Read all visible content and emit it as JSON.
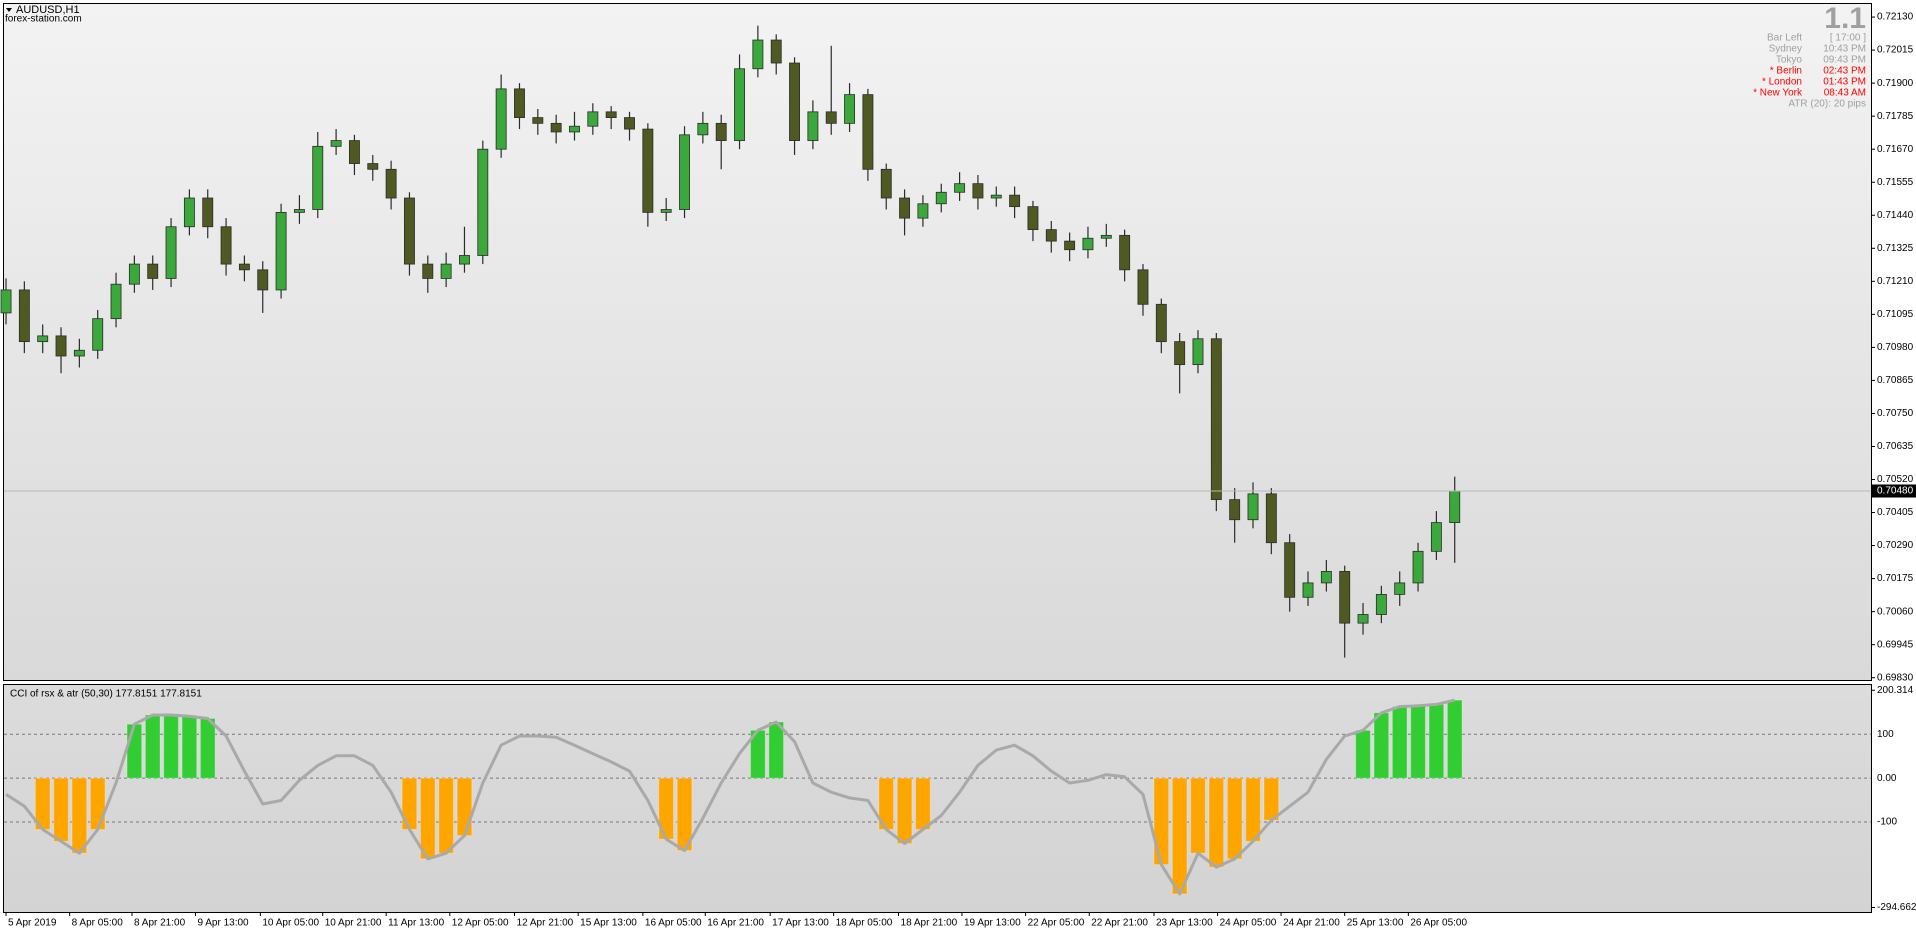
{
  "chart_data": [
    {
      "type": "candlestick",
      "title": "AUDUSD,H1",
      "subtitle": "forex-station.com",
      "xlim": [
        -0.11,
        101.7
      ],
      "ylim": [
        0.69822,
        0.72172
      ],
      "yticks": [
        {
          "value": 0.7213,
          "label": "0.72130"
        },
        {
          "value": 0.72015,
          "label": "0.72015"
        },
        {
          "value": 0.719,
          "label": "0.71900"
        },
        {
          "value": 0.71785,
          "label": "0.71785"
        },
        {
          "value": 0.7167,
          "label": "0.71670"
        },
        {
          "value": 0.71555,
          "label": "0.71555"
        },
        {
          "value": 0.7144,
          "label": "0.71440"
        },
        {
          "value": 0.71325,
          "label": "0.71325"
        },
        {
          "value": 0.7121,
          "label": "0.71210"
        },
        {
          "value": 0.71095,
          "label": "0.71095"
        },
        {
          "value": 0.7098,
          "label": "0.70980"
        },
        {
          "value": 0.70865,
          "label": "0.70865"
        },
        {
          "value": 0.7075,
          "label": "0.70750"
        },
        {
          "value": 0.70635,
          "label": "0.70635"
        },
        {
          "value": 0.7052,
          "label": "0.70520"
        },
        {
          "value": 0.70405,
          "label": "0.70405"
        },
        {
          "value": 0.7029,
          "label": "0.70290"
        },
        {
          "value": 0.70175,
          "label": "0.70175"
        },
        {
          "value": 0.7006,
          "label": "0.70060"
        },
        {
          "value": 0.69945,
          "label": "0.69945"
        },
        {
          "value": 0.6983,
          "label": "0.69830"
        }
      ],
      "current_price": {
        "value": 0.7048,
        "label": "0.70480"
      },
      "bull_color": "#3aa83a",
      "bear_color": "#4f5a22",
      "wick_color": "#2b2b2b",
      "open": [
        0.711,
        0.7118,
        0.71,
        0.7102,
        0.7095,
        0.7097,
        0.7108,
        0.712,
        0.7127,
        0.7122,
        0.714,
        0.715,
        0.714,
        0.7127,
        0.7125,
        0.7118,
        0.7145,
        0.7146,
        0.7168,
        0.717,
        0.7162,
        0.716,
        0.715,
        0.7127,
        0.7122,
        0.7127,
        0.713,
        0.7167,
        0.7188,
        0.7178,
        0.7176,
        0.7173,
        0.7175,
        0.718,
        0.7178,
        0.7174,
        0.7145,
        0.7146,
        0.7172,
        0.7176,
        0.717,
        0.7195,
        0.7205,
        0.7197,
        0.717,
        0.718,
        0.7176,
        0.7186,
        0.716,
        0.715,
        0.7143,
        0.7148,
        0.7152,
        0.7155,
        0.715,
        0.7151,
        0.7147,
        0.7139,
        0.7135,
        0.7132,
        0.7136,
        0.7137,
        0.7125,
        0.7113,
        0.71,
        0.7092,
        0.7101,
        0.7045,
        0.7038,
        0.7047,
        0.703,
        0.7011,
        0.7016,
        0.702,
        0.7002,
        0.7005,
        0.7012,
        0.7016,
        0.7027,
        0.7037
      ],
      "high": [
        0.7122,
        0.7121,
        0.7106,
        0.7105,
        0.7101,
        0.7111,
        0.7124,
        0.713,
        0.713,
        0.7143,
        0.7153,
        0.7153,
        0.7143,
        0.713,
        0.7128,
        0.7148,
        0.7151,
        0.7173,
        0.7174,
        0.7172,
        0.7165,
        0.7163,
        0.7152,
        0.713,
        0.7131,
        0.714,
        0.717,
        0.7193,
        0.719,
        0.7181,
        0.7179,
        0.718,
        0.7183,
        0.7182,
        0.718,
        0.7176,
        0.715,
        0.7175,
        0.718,
        0.7179,
        0.72,
        0.721,
        0.7207,
        0.7199,
        0.7184,
        0.7203,
        0.719,
        0.7188,
        0.7162,
        0.7153,
        0.7151,
        0.7155,
        0.7159,
        0.7158,
        0.7154,
        0.7154,
        0.7149,
        0.7142,
        0.7138,
        0.714,
        0.7141,
        0.7139,
        0.7127,
        0.7115,
        0.7103,
        0.7104,
        0.7103,
        0.7049,
        0.7051,
        0.7049,
        0.7033,
        0.702,
        0.7024,
        0.7022,
        0.7009,
        0.7015,
        0.702,
        0.703,
        0.7041,
        0.7053
      ],
      "low": [
        0.7106,
        0.7096,
        0.7096,
        0.7089,
        0.7091,
        0.7094,
        0.7105,
        0.7117,
        0.7118,
        0.7119,
        0.7137,
        0.7136,
        0.7123,
        0.7121,
        0.711,
        0.7115,
        0.7141,
        0.7143,
        0.7165,
        0.7158,
        0.7156,
        0.7146,
        0.7123,
        0.7117,
        0.7119,
        0.7124,
        0.7127,
        0.7164,
        0.7174,
        0.7172,
        0.7169,
        0.717,
        0.7172,
        0.7174,
        0.717,
        0.714,
        0.7142,
        0.7143,
        0.7169,
        0.716,
        0.7167,
        0.7192,
        0.7193,
        0.7165,
        0.7167,
        0.7172,
        0.7173,
        0.7156,
        0.7146,
        0.7137,
        0.714,
        0.7145,
        0.7149,
        0.7146,
        0.7147,
        0.7143,
        0.7135,
        0.7131,
        0.7128,
        0.7129,
        0.7133,
        0.7121,
        0.7109,
        0.7096,
        0.7082,
        0.7089,
        0.7041,
        0.703,
        0.7035,
        0.7026,
        0.7006,
        0.7008,
        0.7013,
        0.699,
        0.6998,
        0.7002,
        0.7008,
        0.7013,
        0.7024,
        0.7023
      ],
      "close": [
        0.7118,
        0.71,
        0.7102,
        0.7095,
        0.7097,
        0.7108,
        0.712,
        0.7127,
        0.7122,
        0.714,
        0.715,
        0.714,
        0.7127,
        0.7125,
        0.7118,
        0.7145,
        0.7146,
        0.7168,
        0.717,
        0.7162,
        0.716,
        0.715,
        0.7127,
        0.7122,
        0.7127,
        0.713,
        0.7167,
        0.7188,
        0.7178,
        0.7176,
        0.7173,
        0.7175,
        0.718,
        0.7178,
        0.7174,
        0.7145,
        0.7146,
        0.7172,
        0.7176,
        0.717,
        0.7195,
        0.7205,
        0.7197,
        0.717,
        0.718,
        0.7176,
        0.7186,
        0.716,
        0.715,
        0.7143,
        0.7148,
        0.7152,
        0.7155,
        0.715,
        0.7151,
        0.7147,
        0.7139,
        0.7135,
        0.7132,
        0.7136,
        0.7137,
        0.7125,
        0.7113,
        0.71,
        0.7092,
        0.7101,
        0.7045,
        0.7038,
        0.7047,
        0.703,
        0.7011,
        0.7016,
        0.702,
        0.7002,
        0.7005,
        0.7012,
        0.7016,
        0.7027,
        0.7037,
        0.7048
      ]
    },
    {
      "type": "line",
      "title": "CCI of rsx & atr (50,30) 177.8151 177.8151",
      "xlim": [
        -0.11,
        101.7
      ],
      "ylim": [
        -305,
        210
      ],
      "yticks": [
        200.314,
        100,
        {
          "value": 0,
          "label": "0.00"
        },
        -100,
        -294.662
      ],
      "xticks": [
        {
          "value": 0,
          "label": "5 Apr 2019"
        },
        {
          "value": 3.47,
          "label": "8 Apr 05:00"
        },
        {
          "value": 6.87,
          "label": "8 Apr 21:00"
        },
        {
          "value": 10.33,
          "label": "9 Apr 13:00"
        },
        {
          "value": 13.87,
          "label": "10 Apr 05:00"
        },
        {
          "value": 17.27,
          "label": "10 Apr 21:00"
        },
        {
          "value": 20.73,
          "label": "11 Apr 13:00"
        },
        {
          "value": 24.2,
          "label": "12 Apr 05:00"
        },
        {
          "value": 27.73,
          "label": "12 Apr 21:00"
        },
        {
          "value": 31.2,
          "label": "15 Apr 13:00"
        },
        {
          "value": 34.73,
          "label": "16 Apr 05:00"
        },
        {
          "value": 38.13,
          "label": "16 Apr 21:00"
        },
        {
          "value": 41.67,
          "label": "17 Apr 13:00"
        },
        {
          "value": 45.13,
          "label": "18 Apr 05:00"
        },
        {
          "value": 48.67,
          "label": "18 Apr 21:00"
        },
        {
          "value": 52.13,
          "label": "19 Apr 13:00"
        },
        {
          "value": 55.6,
          "label": "22 Apr 05:00"
        },
        {
          "value": 59.07,
          "label": "22 Apr 21:00"
        },
        {
          "value": 62.6,
          "label": "23 Apr 13:00"
        },
        {
          "value": 66.07,
          "label": "24 Apr 05:00"
        },
        {
          "value": 69.53,
          "label": "24 Apr 21:00"
        },
        {
          "value": 73,
          "label": "25 Apr 13:00"
        },
        {
          "value": 76.47,
          "label": "26 Apr 05:00"
        }
      ],
      "series": [
        {
          "kind": "line",
          "color": "#a9a9a9",
          "values": [
            -37,
            -64,
            -117,
            -144,
            -171,
            -117,
            -11,
            123,
            144,
            144,
            141,
            136,
            96,
            16,
            -59,
            -51,
            -5,
            29,
            51,
            51,
            29,
            -32,
            -117,
            -184,
            -171,
            -131,
            -11,
            75,
            96,
            96,
            93,
            75,
            56,
            37,
            16,
            -51,
            -139,
            -165,
            -91,
            -11,
            56,
            109,
            128,
            83,
            -11,
            -32,
            -45,
            -51,
            -117,
            -149,
            -117,
            -85,
            -32,
            29,
            64,
            75,
            51,
            16,
            -11,
            -5,
            8,
            3,
            -37,
            -197,
            -264,
            -171,
            -203,
            -184,
            -144,
            -96,
            -64,
            -32,
            43,
            96,
            109,
            149,
            163,
            165,
            168,
            177.8151
          ]
        },
        {
          "kind": "histogram",
          "color": "#32cd32",
          "values": [
            null,
            null,
            null,
            null,
            null,
            null,
            null,
            123,
            144,
            144,
            141,
            136,
            null,
            null,
            null,
            null,
            null,
            null,
            null,
            null,
            null,
            null,
            null,
            null,
            null,
            null,
            null,
            null,
            null,
            null,
            null,
            null,
            null,
            null,
            null,
            null,
            null,
            null,
            null,
            null,
            null,
            109,
            128,
            null,
            null,
            null,
            null,
            null,
            null,
            null,
            null,
            null,
            null,
            null,
            null,
            null,
            null,
            null,
            null,
            null,
            null,
            null,
            null,
            null,
            null,
            null,
            null,
            null,
            null,
            null,
            null,
            null,
            null,
            null,
            109,
            149,
            163,
            165,
            168,
            177.8151
          ]
        },
        {
          "kind": "histogram",
          "color": "#ffa500",
          "values": [
            null,
            null,
            -117,
            -144,
            -171,
            -117,
            null,
            null,
            null,
            null,
            null,
            null,
            null,
            null,
            null,
            null,
            null,
            null,
            null,
            null,
            null,
            null,
            -117,
            -184,
            -171,
            -131,
            null,
            null,
            null,
            null,
            null,
            null,
            null,
            null,
            null,
            null,
            -139,
            -165,
            null,
            null,
            null,
            null,
            null,
            null,
            null,
            null,
            null,
            null,
            -117,
            -149,
            -117,
            null,
            null,
            null,
            null,
            null,
            null,
            null,
            null,
            null,
            null,
            null,
            null,
            -197,
            -264,
            -171,
            -203,
            -184,
            -144,
            -96,
            null,
            null,
            null,
            null,
            null,
            null,
            null,
            null,
            null,
            null
          ]
        }
      ]
    }
  ],
  "info_panel": {
    "big_value": "1.1",
    "rows": [
      {
        "label": "Bar Left",
        "value": "[ 17:00 ]",
        "color": "#a0a0a0"
      },
      {
        "label": "Sydney",
        "value": "10:43 PM",
        "color": "#a0a0a0"
      },
      {
        "label": "Tokyo",
        "value": "09:43 PM",
        "color": "#a0a0a0"
      },
      {
        "label": "* Berlin",
        "value": "02:43 PM",
        "color": "#ff0000"
      },
      {
        "label": "* London",
        "value": "01:43 PM",
        "color": "#ff0000"
      },
      {
        "label": "* New York",
        "value": "08:43 AM",
        "color": "#ff0000"
      }
    ],
    "atr": "ATR (20): 20 pips"
  }
}
